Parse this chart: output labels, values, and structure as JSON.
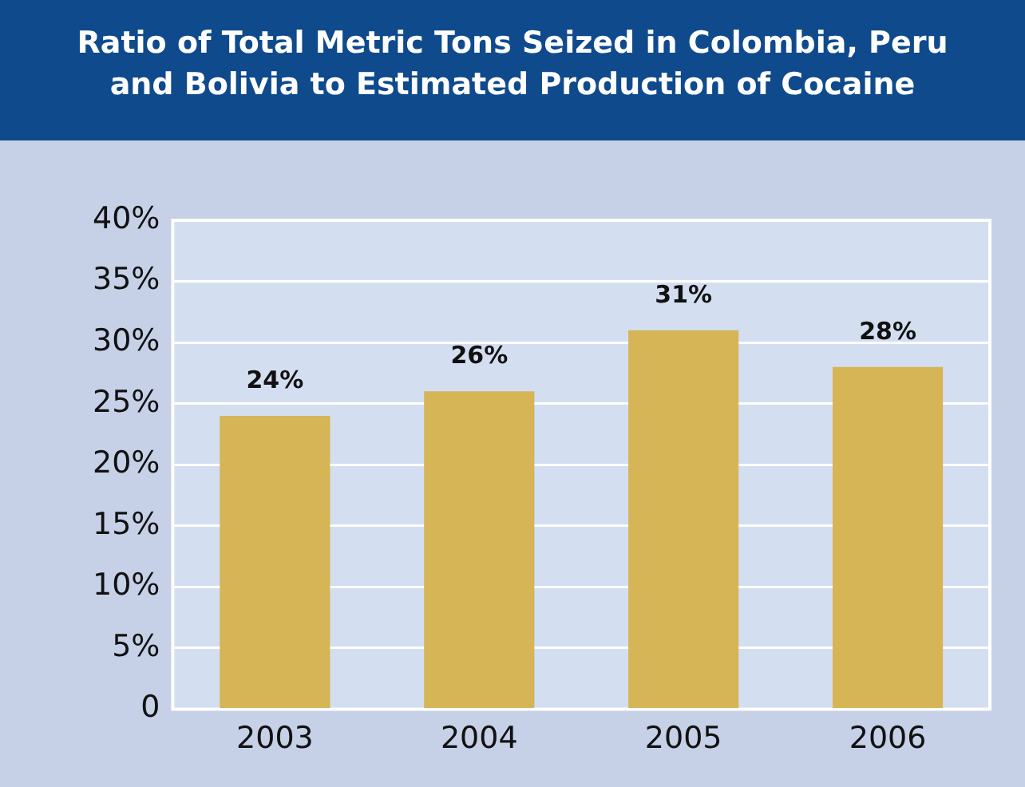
{
  "chart_data": {
    "type": "bar",
    "title": "Ratio of Total Metric Tons Seized in Colombia, Peru and Bolivia to Estimated Production of Cocaine",
    "categories": [
      "2003",
      "2004",
      "2005",
      "2006"
    ],
    "values": [
      24,
      26,
      31,
      28
    ],
    "color": "#d6b557",
    "value_labels": [
      "24%",
      "26%",
      "31%",
      "28%"
    ],
    "ylim": [
      0,
      40
    ],
    "yticks": [
      {
        "value": 0,
        "label": "0"
      },
      {
        "value": 5,
        "label": "5%"
      },
      {
        "value": 10,
        "label": "10%"
      },
      {
        "value": 15,
        "label": "15%"
      },
      {
        "value": 20,
        "label": "20%"
      },
      {
        "value": 25,
        "label": "25%"
      },
      {
        "value": 30,
        "label": "30%"
      },
      {
        "value": 35,
        "label": "35%"
      },
      {
        "value": 40,
        "label": "40%"
      }
    ],
    "grid": "y",
    "legend": false
  }
}
